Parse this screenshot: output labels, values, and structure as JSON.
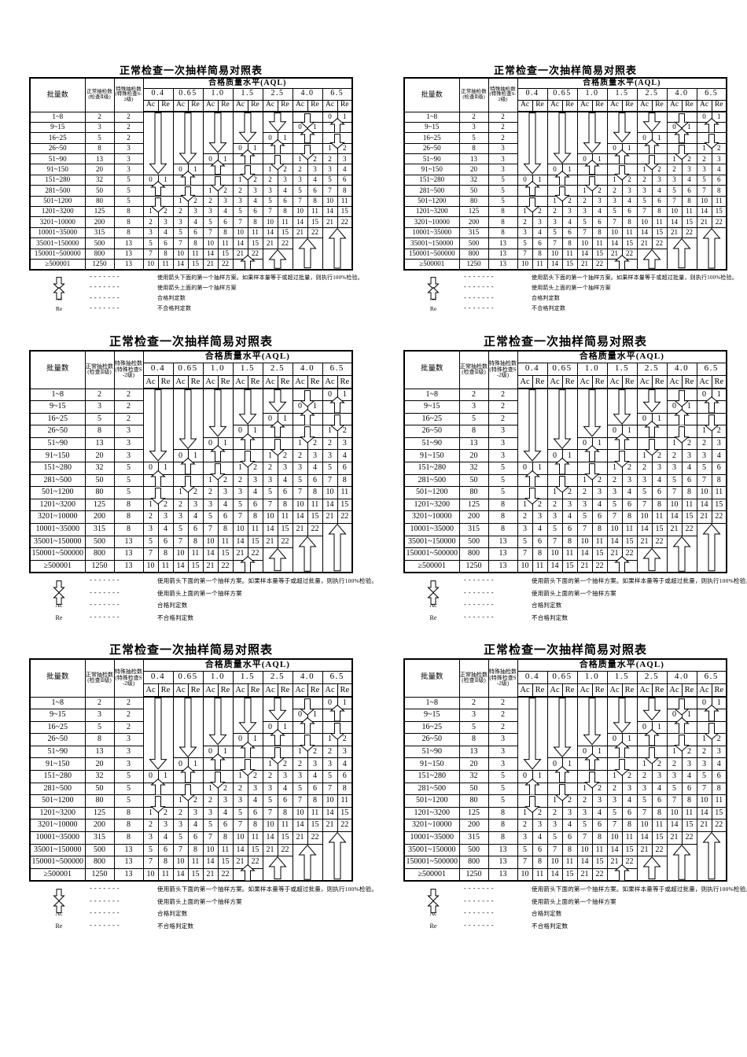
{
  "doc": {
    "title": "正常检查一次抽样简易对照表",
    "header": {
      "lot_col": "批量数",
      "normal_col_line1": "正常抽检数",
      "normal_col_line2": "(检查Ⅱ级)",
      "special_col_line1": "特殊抽检数",
      "special_col_line2": "(特殊检查S-2级)",
      "aql_group": "合格质量水平(AQL)",
      "aql_levels": [
        "0.4",
        "0.65",
        "1.0",
        "1.5",
        "2.5",
        "4.0",
        "6.5"
      ],
      "ac": "Ac",
      "re": "Re"
    },
    "rows": [
      {
        "lot": "1~8",
        "n": 2,
        "s": 2,
        "cells": [
          {
            "arrow": "down-long",
            "span": 6
          },
          {
            "arrow": "down-long",
            "span": 5
          },
          {
            "arrow": "down-long",
            "span": 4
          },
          {
            "arrow": "down-long",
            "span": 3
          },
          {
            "arrow": "down-long",
            "span": 2
          },
          {
            "arrow": "down"
          },
          {
            "ac": 0,
            "re": 1
          }
        ]
      },
      {
        "lot": "9~15",
        "n": 3,
        "s": 2,
        "cells": [
          null,
          null,
          null,
          null,
          null,
          {
            "ac": 0,
            "re": 1
          },
          {
            "arrow": "up"
          }
        ]
      },
      {
        "lot": "16~25",
        "n": 5,
        "s": 2,
        "cells": [
          null,
          null,
          null,
          null,
          {
            "ac": 0,
            "re": 1
          },
          {
            "arrow": "up"
          },
          {
            "arrow": "down"
          }
        ]
      },
      {
        "lot": "26~50",
        "n": 8,
        "s": 3,
        "cells": [
          null,
          null,
          null,
          {
            "ac": 0,
            "re": 1
          },
          {
            "arrow": "up"
          },
          {
            "arrow": "down"
          },
          {
            "ac": 1,
            "re": 2
          }
        ]
      },
      {
        "lot": "51~90",
        "n": 13,
        "s": 3,
        "cells": [
          null,
          null,
          {
            "ac": 0,
            "re": 1
          },
          {
            "arrow": "up"
          },
          {
            "arrow": "down"
          },
          {
            "ac": 1,
            "re": 2
          },
          {
            "ac": 2,
            "re": 3
          }
        ]
      },
      {
        "lot": "91~150",
        "n": 20,
        "s": 3,
        "cells": [
          null,
          {
            "ac": 0,
            "re": 1
          },
          {
            "arrow": "up"
          },
          {
            "arrow": "down"
          },
          {
            "ac": 1,
            "re": 2
          },
          {
            "ac": 2,
            "re": 3
          },
          {
            "ac": 3,
            "re": 4
          }
        ]
      },
      {
        "lot": "151~280",
        "n": 32,
        "s": 5,
        "cells": [
          {
            "ac": 0,
            "re": 1
          },
          {
            "arrow": "up"
          },
          {
            "arrow": "down"
          },
          {
            "ac": 1,
            "re": 2
          },
          {
            "ac": 2,
            "re": 3
          },
          {
            "ac": 3,
            "re": 4
          },
          {
            "ac": 5,
            "re": 6
          }
        ]
      },
      {
        "lot": "281~500",
        "n": 50,
        "s": 5,
        "cells": [
          {
            "arrow": "up"
          },
          {
            "arrow": "down"
          },
          {
            "ac": 1,
            "re": 2
          },
          {
            "ac": 2,
            "re": 3
          },
          {
            "ac": 3,
            "re": 4
          },
          {
            "ac": 5,
            "re": 6
          },
          {
            "ac": 7,
            "re": 8
          }
        ]
      },
      {
        "lot": "501~1200",
        "n": 80,
        "s": 5,
        "cells": [
          {
            "arrow": "down"
          },
          {
            "ac": 1,
            "re": 2
          },
          {
            "ac": 2,
            "re": 3
          },
          {
            "ac": 3,
            "re": 4
          },
          {
            "ac": 5,
            "re": 6
          },
          {
            "ac": 7,
            "re": 8
          },
          {
            "ac": 10,
            "re": 11
          }
        ]
      },
      {
        "lot": "1201~3200",
        "n": 125,
        "s": 8,
        "cells": [
          {
            "ac": 1,
            "re": 2
          },
          {
            "ac": 2,
            "re": 3
          },
          {
            "ac": 3,
            "re": 4
          },
          {
            "ac": 5,
            "re": 6
          },
          {
            "ac": 7,
            "re": 8
          },
          {
            "ac": 10,
            "re": 11
          },
          {
            "ac": 14,
            "re": 15
          }
        ]
      },
      {
        "lot": "3201~10000",
        "n": 200,
        "s": 8,
        "cells": [
          {
            "ac": 2,
            "re": 3
          },
          {
            "ac": 3,
            "re": 4
          },
          {
            "ac": 5,
            "re": 6
          },
          {
            "ac": 7,
            "re": 8
          },
          {
            "ac": 10,
            "re": 11
          },
          {
            "ac": 14,
            "re": 15
          },
          {
            "ac": 21,
            "re": 22
          }
        ]
      },
      {
        "lot": "10001~35000",
        "n": 315,
        "s": 8,
        "cells": [
          {
            "ac": 3,
            "re": 4
          },
          {
            "ac": 5,
            "re": 6
          },
          {
            "ac": 7,
            "re": 8
          },
          {
            "ac": 10,
            "re": 11
          },
          {
            "ac": 14,
            "re": 15
          },
          {
            "ac": 21,
            "re": 22
          },
          {
            "arrow": "up-long",
            "span": 4
          }
        ]
      },
      {
        "lot": "35001~150000",
        "n": 500,
        "s": 13,
        "cells": [
          {
            "ac": 5,
            "re": 6
          },
          {
            "ac": 7,
            "re": 8
          },
          {
            "ac": 10,
            "re": 11
          },
          {
            "ac": 14,
            "re": 15
          },
          {
            "ac": 21,
            "re": 22
          },
          {
            "arrow": "up-long",
            "span": 3
          },
          null
        ]
      },
      {
        "lot": "150001~500000",
        "n": 800,
        "s": 13,
        "cells": [
          {
            "ac": 7,
            "re": 8
          },
          {
            "ac": 10,
            "re": 11
          },
          {
            "ac": 14,
            "re": 15
          },
          {
            "ac": 21,
            "re": 22
          },
          {
            "arrow": "up-long",
            "span": 2
          },
          null,
          null
        ]
      },
      {
        "lot": "≥500001",
        "n": 1250,
        "s": 13,
        "cells": [
          {
            "ac": 10,
            "re": 11
          },
          {
            "ac": 14,
            "re": 15
          },
          {
            "ac": 21,
            "re": 22
          },
          {
            "arrow": "up"
          },
          null,
          null,
          null
        ]
      }
    ],
    "legend_dash": "-------",
    "legend": [
      {
        "icon": "down-arrow",
        "label": null,
        "text": "使用箭头下面的第一个抽样方案。如果样本量等于或超过批量，则执行100%检验。"
      },
      {
        "icon": "up-arrow",
        "label": null,
        "text": "使用箭头上面的第一个抽样方案"
      },
      {
        "icon": null,
        "label": "Ac",
        "text": "合格判定数"
      },
      {
        "icon": null,
        "label": "Re",
        "text": "不合格判定数"
      }
    ]
  }
}
